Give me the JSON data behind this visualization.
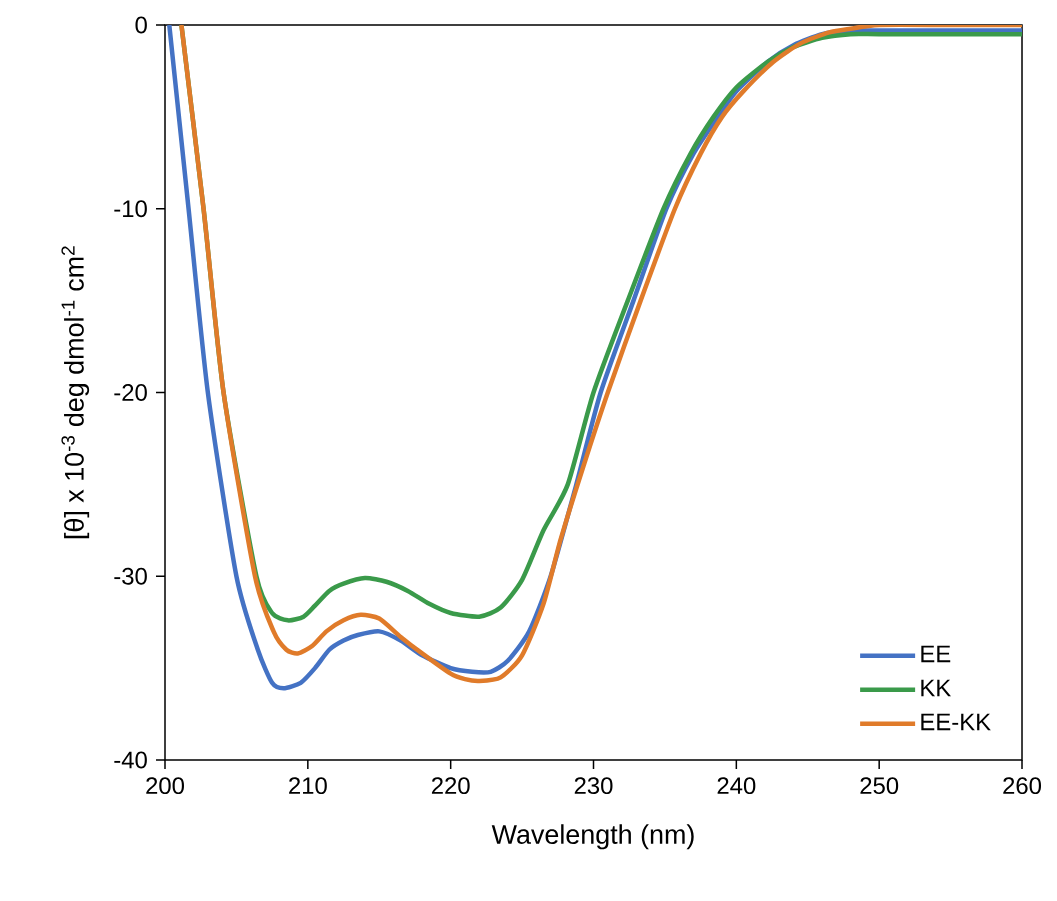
{
  "chart_data": {
    "type": "line",
    "xlabel": "Wavelength (nm)",
    "ylabel": "[θ] x 10$^{-3}$ deg dmol$^{-1}$ cm$^{2}$",
    "xlim": [
      200,
      260
    ],
    "ylim": [
      -40,
      0
    ],
    "xticks": [
      200,
      210,
      220,
      230,
      240,
      250,
      260
    ],
    "yticks": [
      -40,
      -30,
      -20,
      -10,
      0
    ],
    "grid": false,
    "legend": "bottom right",
    "marker": "none",
    "line_style": "solid",
    "series": [
      {
        "name": "EE",
        "color": "#4472c4",
        "x": [
          200.3,
          201.65,
          203.0,
          205.0,
          206.5,
          207.5,
          208.3,
          209.5,
          210.5,
          211.5,
          212.5,
          213.5,
          215.0,
          216.5,
          218.0,
          220.0,
          221.5,
          222.8,
          224.0,
          225.5,
          227.0,
          228.8,
          230.5,
          232.8,
          235.1,
          237.0,
          238.7,
          240.0,
          242.2,
          244.0,
          246.0,
          248.0,
          250.0,
          255.0,
          260.0
        ],
        "values": [
          0,
          -10,
          -20,
          -30,
          -34,
          -35.8,
          -36.1,
          -35.8,
          -35.0,
          -34.0,
          -33.5,
          -33.2,
          -33.0,
          -33.5,
          -34.3,
          -35.0,
          -35.2,
          -35.2,
          -34.6,
          -33.0,
          -30.0,
          -25.0,
          -20.0,
          -15.0,
          -10.0,
          -7.0,
          -5.0,
          -3.6,
          -2.0,
          -1.1,
          -0.5,
          -0.3,
          -0.3,
          -0.3,
          -0.3
        ]
      },
      {
        "name": "KK",
        "color": "#3a9a4a",
        "x": [
          201.15,
          202.7,
          204.1,
          206.4,
          207.5,
          208.6,
          209.7,
          210.5,
          211.5,
          212.5,
          214.0,
          215.5,
          217.0,
          218.5,
          220.0,
          222.0,
          223.5,
          225.0,
          226.5,
          228.2,
          230.0,
          232.4,
          234.9,
          236.8,
          238.4,
          240.0,
          242.2,
          244.0,
          246.0,
          248.0,
          250.0,
          255.0,
          260.0
        ],
        "values": [
          0,
          -10,
          -20,
          -30,
          -32.0,
          -32.4,
          -32.2,
          -31.6,
          -30.8,
          -30.4,
          -30.1,
          -30.3,
          -30.8,
          -31.5,
          -32.0,
          -32.2,
          -31.7,
          -30.2,
          -27.5,
          -25.0,
          -20.0,
          -15.0,
          -10.0,
          -7.0,
          -5.0,
          -3.4,
          -2.0,
          -1.2,
          -0.7,
          -0.5,
          -0.5,
          -0.5,
          -0.5
        ]
      },
      {
        "name": "EE-KK",
        "color": "#e07b2a",
        "x": [
          201.15,
          202.7,
          204.1,
          206.3,
          207.6,
          208.5,
          209.3,
          210.3,
          211.3,
          212.5,
          213.7,
          215.0,
          216.5,
          218.0,
          220.0,
          221.0,
          222.0,
          223.5,
          225.0,
          226.5,
          227.7,
          229.3,
          231.0,
          233.3,
          235.7,
          237.5,
          239.0,
          240.5,
          242.6,
          244.5,
          246.5,
          248.0,
          250.0,
          255.0,
          260.0
        ],
        "values": [
          0,
          -10,
          -20,
          -30,
          -33.0,
          -34.0,
          -34.2,
          -33.8,
          -33.0,
          -32.4,
          -32.1,
          -32.3,
          -33.3,
          -34.2,
          -35.3,
          -35.6,
          -35.7,
          -35.5,
          -34.3,
          -31.5,
          -28.0,
          -24.0,
          -20.0,
          -15.0,
          -10.0,
          -7.0,
          -5.0,
          -3.6,
          -2.0,
          -1.0,
          -0.4,
          -0.2,
          0.0,
          0.0,
          0.0
        ]
      }
    ]
  }
}
